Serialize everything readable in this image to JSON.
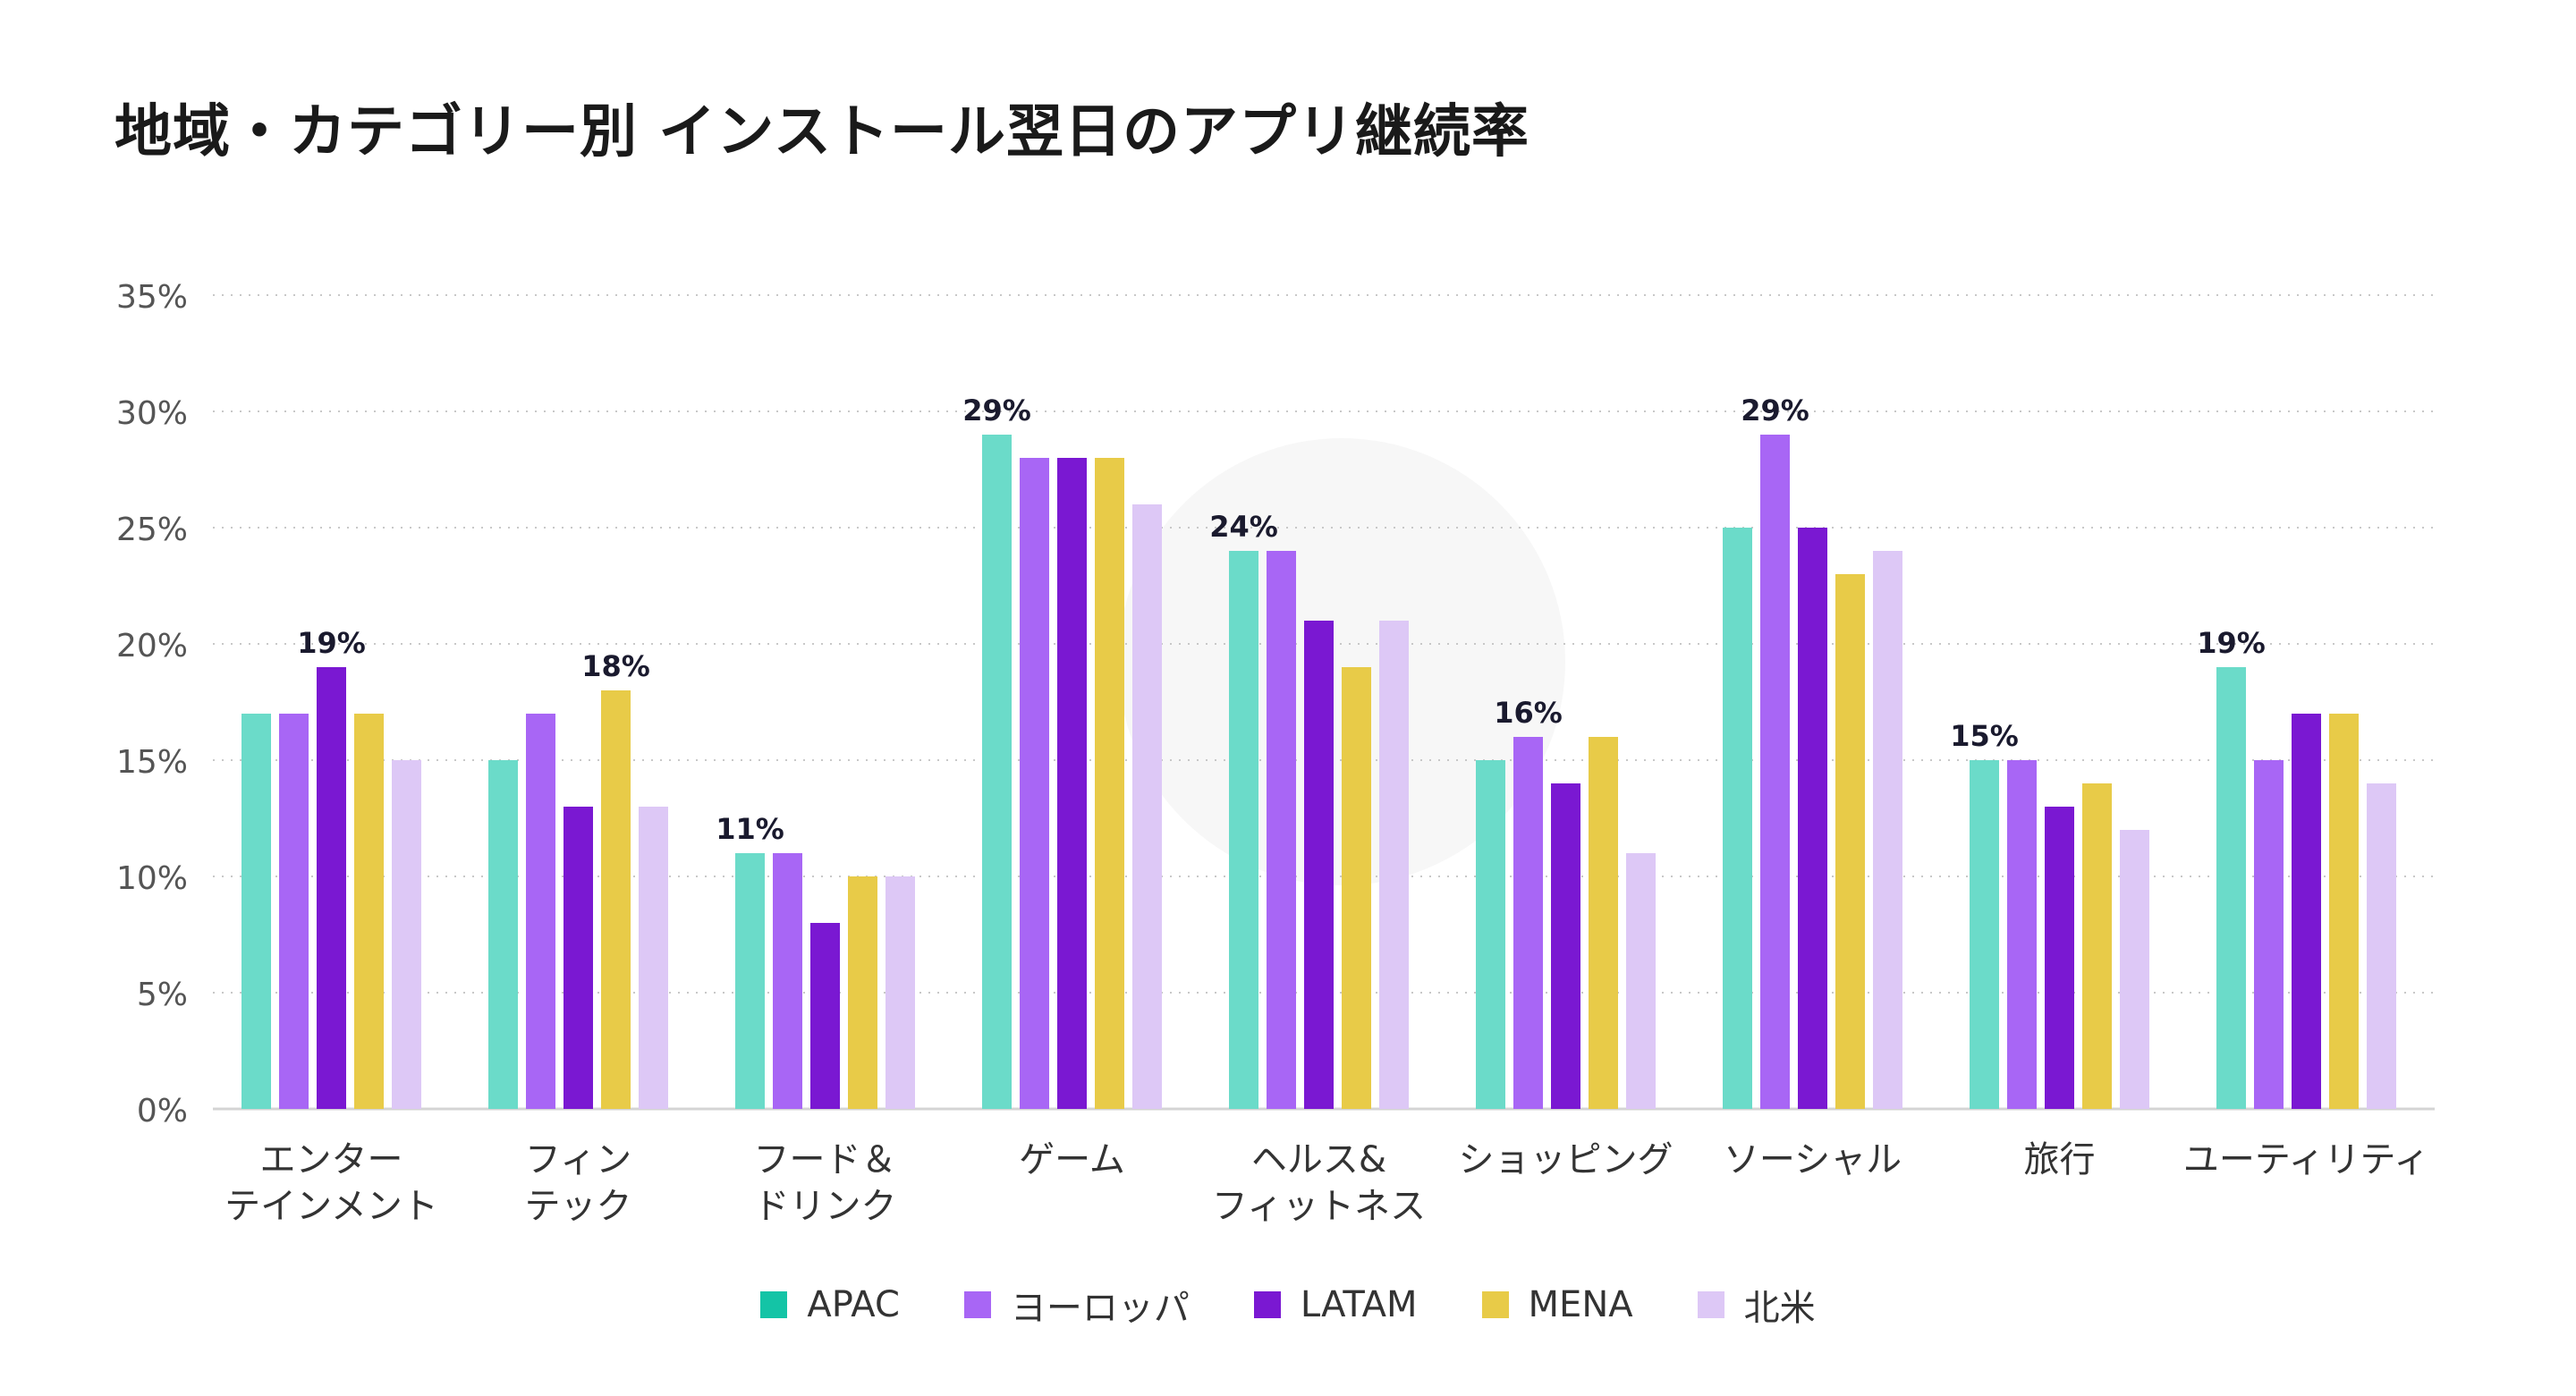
{
  "chart_data": {
    "type": "bar",
    "title": "地域・カテゴリー別 インストール翌日のアプリ継続率",
    "xlabel": "",
    "ylabel": "",
    "ylim": [
      0,
      35
    ],
    "yticks": [
      "0%",
      "5%",
      "10%",
      "15%",
      "20%",
      "25%",
      "30%",
      "35%"
    ],
    "ytick_values": [
      0,
      5,
      10,
      15,
      20,
      25,
      30,
      35
    ],
    "grid": true,
    "legend_position": "bottom",
    "categories": [
      [
        "エンター",
        "テインメント"
      ],
      [
        "フィン",
        "テック"
      ],
      [
        "フード＆",
        "ドリンク"
      ],
      [
        "ゲーム"
      ],
      [
        "ヘルス&",
        "フィットネス"
      ],
      [
        "ショッピング"
      ],
      [
        "ソーシャル"
      ],
      [
        "旅行"
      ],
      [
        "ユーティリティ"
      ]
    ],
    "series": [
      {
        "name": "APAC",
        "color": "#6BDBC9",
        "legend_color": "#14C4A6",
        "values": [
          17,
          15,
          11,
          29,
          24,
          15,
          25,
          15,
          19
        ]
      },
      {
        "name": "ヨーロッパ",
        "color": "#A866F5",
        "legend_color": "#A866F5",
        "values": [
          17,
          17,
          11,
          28,
          24,
          16,
          29,
          15,
          15
        ]
      },
      {
        "name": "LATAM",
        "color": "#7A18D2",
        "legend_color": "#7A18D2",
        "values": [
          19,
          13,
          8,
          28,
          21,
          14,
          25,
          13,
          17
        ]
      },
      {
        "name": "MENA",
        "color": "#E8CB48",
        "legend_color": "#E8CB48",
        "values": [
          17,
          18,
          10,
          28,
          19,
          16,
          23,
          14,
          17
        ]
      },
      {
        "name": "北米",
        "color": "#DDC8F6",
        "legend_color": "#DDC8F6",
        "values": [
          15,
          13,
          10,
          26,
          21,
          11,
          24,
          12,
          14
        ]
      }
    ],
    "annotations": [
      "19%",
      "18%",
      "11%",
      "29%",
      "24%",
      "16%",
      "29%",
      "15%",
      "19%"
    ]
  }
}
